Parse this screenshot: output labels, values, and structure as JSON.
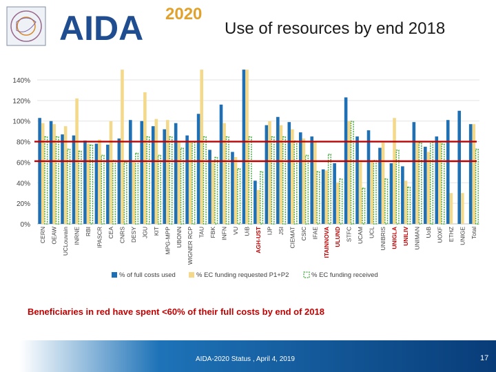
{
  "header": {
    "logo_text": "AIDA",
    "logo_year": "2020",
    "title": "Use of resources by end 2018"
  },
  "colors": {
    "series1": "#1f6fb4",
    "series2": "#f5d98a",
    "series3_fill": "#ffffff",
    "series3_stroke": "#3aa535",
    "threshold_line": "#c00000",
    "red_label": "#c00000"
  },
  "chart_data": {
    "type": "bar",
    "title": "",
    "xlabel": "",
    "ylabel": "",
    "ylim": [
      0,
      140
    ],
    "yticks": [
      0,
      20,
      40,
      60,
      80,
      100,
      120,
      140
    ],
    "ytick_labels": [
      "0%",
      "20%",
      "40%",
      "60%",
      "80%",
      "100%",
      "120%",
      "140%"
    ],
    "reference_lines": [
      80,
      61
    ],
    "legend_position": "bottom",
    "categories": [
      "CERN",
      "OEAW",
      "UCLouvain",
      "INRNE",
      "RBI",
      "IPASCR",
      "CEA",
      "CNRS",
      "DESY",
      "JGU",
      "KIT",
      "MPG-MPP",
      "UBONN",
      "WIGNER RCP",
      "TAU",
      "FBK",
      "INFN",
      "VU",
      "UiB",
      "AGH-UST",
      "IJP",
      "JSI",
      "CIEMAT",
      "CSIC",
      "IFAE",
      "ITAINNOVA",
      "ULUND",
      "STFC",
      "UCAM",
      "UCL",
      "UNIBRIS",
      "UNIGLA",
      "UNILIV",
      "UNIMAN",
      "UoB",
      "UOXF",
      "ETHZ",
      "UNIGE",
      "Total"
    ],
    "red_categories": [
      "AGH-UST",
      "ITAINNOVA",
      "ULUND",
      "UNIGLA",
      "UNILIV"
    ],
    "series": [
      {
        "name": "% of full costs used",
        "values": [
          103,
          100,
          87,
          86,
          81,
          78,
          77,
          83,
          101,
          100,
          95,
          92,
          98,
          86,
          107,
          72,
          116,
          70,
          150,
          42,
          96,
          104,
          99,
          89,
          85,
          53,
          59,
          123,
          85,
          91,
          74,
          59,
          56,
          99,
          75,
          85,
          101,
          110,
          97
        ]
      },
      {
        "name": "% EC funding requested P1+P2",
        "values": [
          98,
          97,
          95,
          122,
          78,
          82,
          100,
          150,
          60,
          128,
          102,
          101,
          80,
          80,
          150,
          60,
          98,
          65,
          150,
          33,
          100,
          96,
          92,
          83,
          80,
          52,
          40,
          100,
          62,
          62,
          79,
          103,
          42,
          80,
          70,
          80,
          30,
          30,
          97
        ]
      },
      {
        "name": "% EC funding received",
        "values": [
          85,
          85,
          73,
          71,
          77,
          67,
          62,
          60,
          69,
          85,
          67,
          85,
          74,
          80,
          85,
          65,
          85,
          54,
          85,
          51,
          85,
          85,
          81,
          67,
          51,
          68,
          44,
          100,
          35,
          62,
          44,
          72,
          36,
          79,
          80,
          78,
          0,
          0,
          73
        ]
      }
    ]
  },
  "note": "Beneficiaries in red have spent <60% of their full costs by end of 2018",
  "footer": {
    "text": "AIDA-2020 Status , April 4, 2019",
    "page": "17"
  }
}
